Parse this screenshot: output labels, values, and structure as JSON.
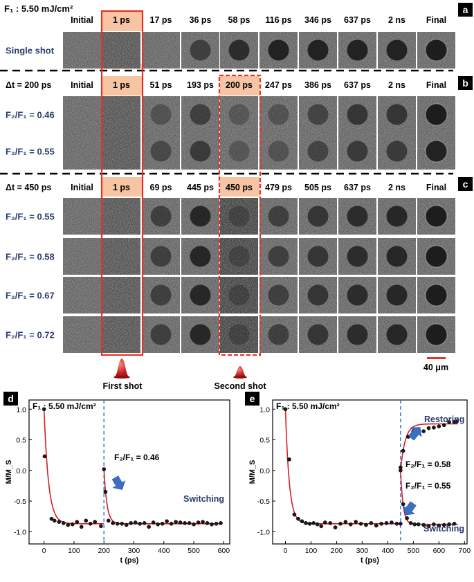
{
  "top_panels": {
    "fluence_label": "F₁ : 5.50 mJ/cm²",
    "scale_bar_label": "40 μm",
    "first_shot_label": "First shot",
    "second_shot_label": "Second shot",
    "panels": [
      {
        "tag": "a",
        "headers": [
          "Initial",
          "1 ps",
          "17 ps",
          "36 ps",
          "58 ps",
          "116 ps",
          "346 ps",
          "637 ps",
          "2 ns",
          "Final"
        ],
        "rows": [
          {
            "label": "Single shot",
            "spot": [
              0,
              0,
              0,
              0.55,
              0.75,
              0.85,
              0.85,
              0.85,
              0.85,
              0.9
            ]
          }
        ]
      },
      {
        "tag": "b",
        "delay_label": "Δt = 200 ps",
        "headers": [
          "Initial",
          "1 ps",
          "51 ps",
          "193 ps",
          "200 ps",
          "247 ps",
          "386 ps",
          "637 ps",
          "2 ns",
          "Final"
        ],
        "rows": [
          {
            "label": "F₂/F₁ = 0.46",
            "spot": [
              0,
              0,
              0.35,
              0.55,
              0.3,
              0.35,
              0.5,
              0.65,
              0.65,
              0.9
            ]
          },
          {
            "label": "F₂/F₁ = 0.55",
            "spot": [
              0,
              0,
              0.45,
              0.6,
              0.3,
              0.35,
              0.5,
              0.6,
              0.6,
              0.85
            ]
          }
        ]
      },
      {
        "tag": "c",
        "delay_label": "Δt = 450 ps",
        "headers": [
          "Initial",
          "1 ps",
          "69 ps",
          "445 ps",
          "450 ps",
          "479 ps",
          "505 ps",
          "637 ps",
          "2 ns",
          "Final"
        ],
        "rows": [
          {
            "label": "F₂/F₁ = 0.55",
            "spot": [
              0,
              0,
              0.55,
              0.8,
              0.3,
              0.55,
              0.65,
              0.75,
              0.8,
              0.9
            ]
          },
          {
            "label": "F₂/F₁ = 0.58",
            "spot": [
              0,
              0,
              0.55,
              0.8,
              0.3,
              0.55,
              0.65,
              0.75,
              0.8,
              0.9
            ]
          },
          {
            "label": "F₂/F₁ = 0.67",
            "spot": [
              0,
              0,
              0.55,
              0.8,
              0.3,
              0.55,
              0.65,
              0.75,
              0.8,
              0.9
            ]
          },
          {
            "label": "F₂/F₁ = 0.72",
            "spot": [
              0,
              0,
              0.55,
              0.8,
              0.3,
              0.55,
              0.65,
              0.75,
              0.8,
              0.9
            ]
          }
        ]
      }
    ]
  },
  "chart_data": [
    {
      "type": "scatter",
      "panel": "d",
      "annotation": "F₁ : 5.50 mJ/cm²",
      "xlabel": "t (ps)",
      "ylabel": "M/M_S",
      "xlim": [
        -50,
        620
      ],
      "ylim": [
        -1.2,
        1.15
      ],
      "xticks": [
        0,
        100,
        200,
        300,
        400,
        500,
        600
      ],
      "yticks": [
        -1.0,
        -0.5,
        0.0,
        0.5,
        1.0
      ],
      "second_shot_time": 200,
      "labels": {
        "ratio": "F₂/F₁ = 0.46",
        "state": "Switching"
      },
      "series": [
        {
          "x": [
            0,
            2,
            25,
            35,
            50,
            65,
            80,
            95,
            110,
            125,
            140,
            155,
            170,
            190,
            200,
            205,
            215,
            230,
            245,
            260,
            275,
            290,
            305,
            320,
            335,
            350,
            365,
            380,
            395,
            410,
            425,
            440,
            455,
            470,
            485,
            500,
            515,
            530,
            545,
            560,
            575,
            590
          ],
          "y": [
            1.0,
            0.23,
            -0.79,
            -0.82,
            -0.84,
            -0.86,
            -0.89,
            -0.88,
            -0.84,
            -0.92,
            -0.82,
            -0.87,
            -0.84,
            -0.91,
            0.02,
            -0.35,
            -0.82,
            -0.86,
            -0.87,
            -0.87,
            -0.89,
            -0.86,
            -0.85,
            -0.87,
            -0.86,
            -0.92,
            -0.85,
            -0.88,
            -0.87,
            -0.83,
            -0.87,
            -0.84,
            -0.85,
            -0.86,
            -0.86,
            -0.88,
            -0.85,
            -0.84,
            -0.86,
            -0.88,
            -0.87,
            -0.86
          ]
        }
      ]
    },
    {
      "type": "scatter",
      "panel": "e",
      "annotation": "F₁ : 5.50 mJ/cm²",
      "xlabel": "t (ps)",
      "ylabel": "M/M_S",
      "xlim": [
        -50,
        710
      ],
      "ylim": [
        -1.2,
        1.15
      ],
      "xticks": [
        0,
        100,
        200,
        300,
        400,
        500,
        600,
        700
      ],
      "yticks": [
        -1.0,
        -0.5,
        0.0,
        0.5,
        1.0
      ],
      "second_shot_time": 450,
      "labels": {
        "restoring": "Restoring",
        "ratio_upper": "F₂/F₁ = 0.58",
        "ratio_lower": "F₂/F₁ = 0.55",
        "switching": "Switching"
      },
      "series": [
        {
          "x": [
            0,
            15,
            35,
            50,
            65,
            80,
            95,
            110,
            125,
            140,
            155,
            175,
            195,
            215,
            235,
            255,
            275,
            295,
            315,
            335,
            355,
            375,
            395,
            415,
            435,
            450
          ],
          "y": [
            1.0,
            0.18,
            -0.72,
            -0.79,
            -0.83,
            -0.86,
            -0.87,
            -0.86,
            -0.88,
            -0.91,
            -0.85,
            -0.86,
            -0.93,
            -0.87,
            -0.84,
            -0.88,
            -0.84,
            -0.87,
            -0.89,
            -0.86,
            -0.9,
            -0.87,
            -0.86,
            -0.85,
            -0.87,
            -0.87
          ]
        },
        {
          "x": [
            450,
            460,
            480,
            500,
            520,
            540,
            560,
            580,
            600,
            620,
            640,
            660,
            670
          ],
          "y": [
            0.05,
            0.32,
            0.55,
            0.64,
            0.67,
            0.64,
            0.69,
            0.7,
            0.72,
            0.74,
            0.79,
            0.79,
            0.8
          ]
        },
        {
          "x": [
            450,
            460,
            475,
            490,
            505,
            520,
            540,
            560,
            580,
            600,
            620,
            640,
            660
          ],
          "y": [
            0.0,
            -0.55,
            -0.78,
            -0.86,
            -0.88,
            -0.88,
            -0.89,
            -0.91,
            -0.88,
            -0.9,
            -0.89,
            -0.88,
            -0.87
          ]
        }
      ]
    }
  ]
}
